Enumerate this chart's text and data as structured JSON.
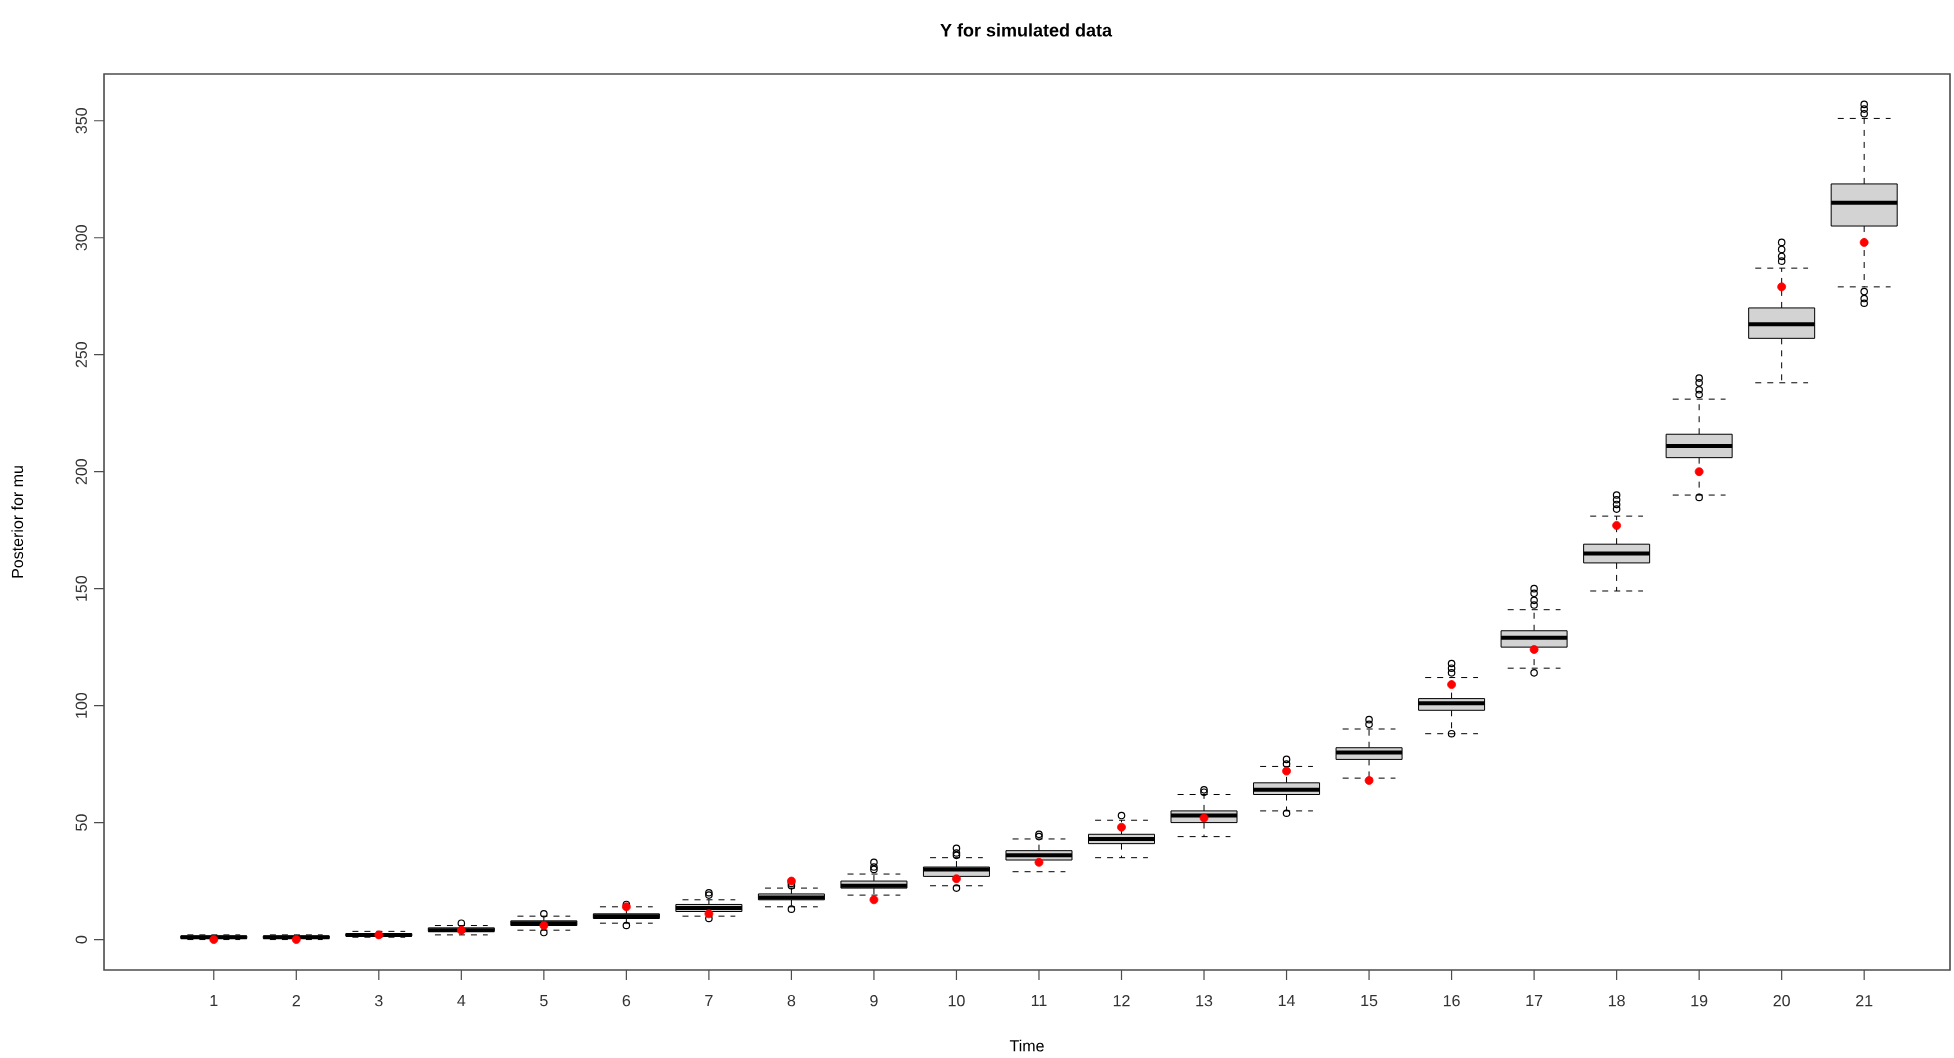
{
  "chart_data": {
    "type": "box",
    "title": "Y for simulated data",
    "xlabel": "Time",
    "ylabel": "Posterior for mu",
    "categories": [
      "1",
      "2",
      "3",
      "4",
      "5",
      "6",
      "7",
      "8",
      "9",
      "10",
      "11",
      "12",
      "13",
      "14",
      "15",
      "16",
      "17",
      "18",
      "19",
      "20",
      "21"
    ],
    "ylim": [
      -13,
      370
    ],
    "yticks": [
      0,
      50,
      100,
      150,
      200,
      250,
      300,
      350
    ],
    "series": [
      {
        "color": "#d3d3d3",
        "boxes": [
          {
            "low": 0,
            "q1": 0.5,
            "median": 1,
            "q3": 1.5,
            "high": 2
          },
          {
            "low": 0,
            "q1": 0.5,
            "median": 1,
            "q3": 1.5,
            "high": 2
          },
          {
            "low": 1,
            "q1": 1.5,
            "median": 2,
            "q3": 2.5,
            "high": 3.5
          },
          {
            "low": 2,
            "q1": 3.5,
            "median": 4,
            "q3": 5,
            "high": 6,
            "outliers": [
              7
            ]
          },
          {
            "low": 4,
            "q1": 6,
            "median": 7,
            "q3": 8,
            "high": 10,
            "outliers": [
              11,
              3
            ]
          },
          {
            "low": 7,
            "q1": 9,
            "median": 10,
            "q3": 11,
            "high": 14,
            "outliers": [
              15,
              6
            ]
          },
          {
            "low": 10,
            "q1": 12,
            "median": 13.5,
            "q3": 15,
            "high": 17,
            "outliers": [
              19,
              20,
              9
            ]
          },
          {
            "low": 14,
            "q1": 17,
            "median": 18,
            "q3": 19.5,
            "high": 22,
            "outliers": [
              23,
              24,
              13
            ]
          },
          {
            "low": 19,
            "q1": 22,
            "median": 23,
            "q3": 25,
            "high": 28,
            "outliers": [
              30,
              31,
              33
            ]
          },
          {
            "low": 23,
            "q1": 27,
            "median": 30,
            "q3": 31,
            "high": 35,
            "outliers": [
              36,
              37,
              39,
              22
            ]
          },
          {
            "low": 29,
            "q1": 34,
            "median": 36,
            "q3": 38,
            "high": 43,
            "outliers": [
              44,
              45
            ]
          },
          {
            "low": 35,
            "q1": 41,
            "median": 43,
            "q3": 45,
            "high": 51,
            "outliers": [
              53
            ]
          },
          {
            "low": 44,
            "q1": 50,
            "median": 53,
            "q3": 55,
            "high": 62,
            "outliers": [
              63,
              64
            ]
          },
          {
            "low": 55,
            "q1": 62,
            "median": 64,
            "q3": 67,
            "high": 74,
            "outliers": [
              75,
              77,
              54
            ]
          },
          {
            "low": 69,
            "q1": 77,
            "median": 80,
            "q3": 82,
            "high": 90,
            "outliers": [
              92,
              94
            ]
          },
          {
            "low": 88,
            "q1": 98,
            "median": 101,
            "q3": 103,
            "high": 112,
            "outliers": [
              114,
              116,
              118,
              88
            ]
          },
          {
            "low": 116,
            "q1": 125,
            "median": 129,
            "q3": 132,
            "high": 141,
            "outliers": [
              143,
              145,
              148,
              150,
              114
            ]
          },
          {
            "low": 149,
            "q1": 161,
            "median": 165,
            "q3": 169,
            "high": 181,
            "outliers": [
              184,
              186,
              188,
              190
            ]
          },
          {
            "low": 190,
            "q1": 206,
            "median": 211,
            "q3": 216,
            "high": 231,
            "outliers": [
              233,
              235,
              238,
              240,
              189
            ]
          },
          {
            "low": 238,
            "q1": 257,
            "median": 263,
            "q3": 270,
            "high": 287,
            "outliers": [
              290,
              292,
              295,
              298
            ]
          },
          {
            "low": 279,
            "q1": 305,
            "median": 315,
            "q3": 323,
            "high": 351,
            "outliers": [
              353,
              355,
              357,
              277,
              274,
              272
            ]
          }
        ]
      },
      {
        "type": "scatter",
        "color": "#ff0000",
        "x": [
          "1",
          "2",
          "3",
          "4",
          "5",
          "6",
          "7",
          "8",
          "9",
          "10",
          "11",
          "12",
          "13",
          "14",
          "15",
          "16",
          "17",
          "18",
          "19",
          "20",
          "21"
        ],
        "values": [
          0,
          0,
          2,
          4,
          6,
          14,
          11,
          25,
          17,
          26,
          33,
          48,
          52,
          72,
          68,
          109,
          124,
          177,
          200,
          279,
          298
        ]
      }
    ]
  }
}
